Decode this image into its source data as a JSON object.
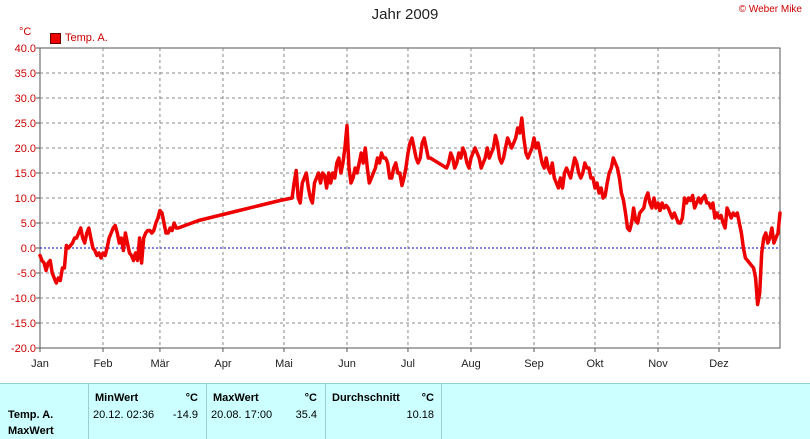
{
  "window": {
    "title": "Jahr 2009",
    "copyright": "© Weber Mike",
    "unit": "°C"
  },
  "chart_data": {
    "type": "line",
    "title": "Jahr 2009",
    "ylabel": "°C",
    "ylim": [
      -20,
      40
    ],
    "yticks": [
      "40.0",
      "35.0",
      "30.0",
      "25.0",
      "20.0",
      "15.0",
      "10.0",
      "5.0",
      "0.0",
      "-5.0",
      "-10.0",
      "-15.0",
      "-20.0"
    ],
    "xticks": [
      "Jan",
      "Feb",
      "Mär",
      "Apr",
      "Mai",
      "Jun",
      "Jul",
      "Aug",
      "Sep",
      "Okt",
      "Nov",
      "Dez"
    ],
    "grid": true,
    "legend": "top-left",
    "zero_line": true,
    "series": [
      {
        "name": "Temp. A.",
        "color": "#ee0000",
        "points": [
          [
            1,
            -1.5
          ],
          [
            2,
            -2.5
          ],
          [
            3,
            -3
          ],
          [
            4,
            -4.5
          ],
          [
            5,
            -3
          ],
          [
            6,
            -2.5
          ],
          [
            7,
            -5
          ],
          [
            8,
            -6
          ],
          [
            9,
            -7
          ],
          [
            10,
            -6
          ],
          [
            11,
            -6.5
          ],
          [
            12,
            -4
          ],
          [
            13,
            -4
          ],
          [
            14,
            0.5
          ],
          [
            15,
            0
          ],
          [
            16,
            0.5
          ],
          [
            17,
            1
          ],
          [
            18,
            2
          ],
          [
            19,
            2
          ],
          [
            20,
            3
          ],
          [
            21,
            4
          ],
          [
            22,
            2
          ],
          [
            23,
            1
          ],
          [
            24,
            3
          ],
          [
            25,
            4
          ],
          [
            26,
            2
          ],
          [
            27,
            0
          ],
          [
            28,
            -0.5
          ],
          [
            29,
            -1.5
          ],
          [
            30,
            -1
          ],
          [
            31,
            -2
          ],
          [
            32,
            -1
          ],
          [
            33,
            -1.5
          ],
          [
            34,
            0
          ],
          [
            35,
            2
          ],
          [
            36,
            3
          ],
          [
            37,
            4
          ],
          [
            38,
            4.5
          ],
          [
            39,
            3
          ],
          [
            40,
            1
          ],
          [
            41,
            2
          ],
          [
            42,
            -0.5
          ],
          [
            43,
            3
          ],
          [
            44,
            1
          ],
          [
            45,
            -1
          ],
          [
            46,
            -1.5
          ],
          [
            47,
            -2.5
          ],
          [
            48,
            -1
          ],
          [
            49,
            -2.5
          ],
          [
            50,
            2
          ],
          [
            51,
            -3
          ],
          [
            52,
            2
          ],
          [
            53,
            3
          ],
          [
            54,
            3.5
          ],
          [
            55,
            3.5
          ],
          [
            56,
            3
          ],
          [
            57,
            3.5
          ],
          [
            58,
            5
          ],
          [
            59,
            6
          ],
          [
            60,
            7.5
          ],
          [
            61,
            7
          ],
          [
            62,
            5
          ],
          [
            63,
            3
          ],
          [
            64,
            3
          ],
          [
            65,
            4
          ],
          [
            66,
            3.5
          ],
          [
            67,
            5
          ],
          [
            68,
            4
          ],
          [
            69,
            4
          ],
          [
            79,
            5.5
          ],
          [
            89,
            6.5
          ],
          [
            99,
            7.5
          ],
          [
            109,
            8.5
          ],
          [
            119,
            9.5
          ],
          [
            125,
            10
          ],
          [
            126,
            13
          ],
          [
            127,
            15.5
          ],
          [
            128,
            10
          ],
          [
            129,
            9
          ],
          [
            130,
            13
          ],
          [
            131,
            14
          ],
          [
            132,
            15
          ],
          [
            133,
            12
          ],
          [
            134,
            10
          ],
          [
            135,
            9
          ],
          [
            136,
            13
          ],
          [
            137,
            14
          ],
          [
            138,
            15
          ],
          [
            139,
            13
          ],
          [
            140,
            15
          ],
          [
            141,
            14.5
          ],
          [
            142,
            12
          ],
          [
            143,
            15
          ],
          [
            144,
            13
          ],
          [
            145,
            15
          ],
          [
            146,
            14
          ],
          [
            147,
            17
          ],
          [
            148,
            18
          ],
          [
            149,
            15
          ],
          [
            150,
            17
          ],
          [
            151,
            20
          ],
          [
            152,
            24.5
          ],
          [
            153,
            16
          ],
          [
            154,
            13
          ],
          [
            155,
            14
          ],
          [
            156,
            16
          ],
          [
            157,
            15
          ],
          [
            158,
            17
          ],
          [
            159,
            19
          ],
          [
            160,
            17
          ],
          [
            161,
            20
          ],
          [
            162,
            16
          ],
          [
            163,
            13
          ],
          [
            164,
            14
          ],
          [
            165,
            15
          ],
          [
            166,
            16
          ],
          [
            167,
            18
          ],
          [
            168,
            17
          ],
          [
            169,
            19
          ],
          [
            170,
            18
          ],
          [
            171,
            18
          ],
          [
            172,
            17
          ],
          [
            173,
            14
          ],
          [
            174,
            14
          ],
          [
            175,
            16
          ],
          [
            176,
            17
          ],
          [
            177,
            15
          ],
          [
            178,
            15
          ],
          [
            179,
            12.5
          ],
          [
            180,
            14
          ],
          [
            181,
            16
          ],
          [
            182,
            19
          ],
          [
            183,
            21
          ],
          [
            184,
            22
          ],
          [
            185,
            20
          ],
          [
            186,
            18
          ],
          [
            187,
            17
          ],
          [
            188,
            18
          ],
          [
            189,
            21
          ],
          [
            190,
            22
          ],
          [
            191,
            20
          ],
          [
            192,
            18
          ],
          [
            193,
            18
          ],
          [
            201,
            16
          ],
          [
            202,
            17
          ],
          [
            203,
            19
          ],
          [
            204,
            18
          ],
          [
            205,
            16
          ],
          [
            206,
            17
          ],
          [
            207,
            19
          ],
          [
            208,
            18
          ],
          [
            209,
            20
          ],
          [
            210,
            19
          ],
          [
            211,
            17
          ],
          [
            212,
            16
          ],
          [
            213,
            18
          ],
          [
            214,
            19
          ],
          [
            215,
            20
          ],
          [
            216,
            19
          ],
          [
            217,
            18
          ],
          [
            218,
            16
          ],
          [
            219,
            17
          ],
          [
            220,
            18
          ],
          [
            221,
            20
          ],
          [
            222,
            18
          ],
          [
            223,
            19
          ],
          [
            224,
            20
          ],
          [
            225,
            22.5
          ],
          [
            226,
            21
          ],
          [
            227,
            18
          ],
          [
            228,
            17
          ],
          [
            229,
            18
          ],
          [
            230,
            20
          ],
          [
            231,
            22
          ],
          [
            232,
            21
          ],
          [
            233,
            20
          ],
          [
            234,
            21
          ],
          [
            235,
            22
          ],
          [
            236,
            24
          ],
          [
            237,
            23
          ],
          [
            238,
            26
          ],
          [
            239,
            22
          ],
          [
            240,
            19
          ],
          [
            241,
            18
          ],
          [
            242,
            19
          ],
          [
            243,
            20
          ],
          [
            244,
            22
          ],
          [
            245,
            20
          ],
          [
            246,
            21
          ],
          [
            247,
            19
          ],
          [
            248,
            17
          ],
          [
            249,
            16
          ],
          [
            250,
            18
          ],
          [
            251,
            16
          ],
          [
            252,
            15
          ],
          [
            253,
            17
          ],
          [
            254,
            14
          ],
          [
            255,
            13
          ],
          [
            256,
            12
          ],
          [
            257,
            14
          ],
          [
            258,
            12
          ],
          [
            259,
            15
          ],
          [
            260,
            16
          ],
          [
            261,
            15
          ],
          [
            262,
            14
          ],
          [
            263,
            16
          ],
          [
            264,
            18
          ],
          [
            265,
            17
          ],
          [
            266,
            15
          ],
          [
            267,
            14
          ],
          [
            268,
            15
          ],
          [
            269,
            17
          ],
          [
            270,
            16
          ],
          [
            271,
            16
          ],
          [
            272,
            14
          ],
          [
            273,
            14
          ],
          [
            274,
            12
          ],
          [
            275,
            13
          ],
          [
            276,
            11
          ],
          [
            277,
            12
          ],
          [
            278,
            10
          ],
          [
            279,
            10.5
          ],
          [
            280,
            13
          ],
          [
            281,
            15
          ],
          [
            282,
            16
          ],
          [
            283,
            18
          ],
          [
            284,
            17
          ],
          [
            285,
            16
          ],
          [
            286,
            14
          ],
          [
            287,
            11
          ],
          [
            288,
            9.5
          ],
          [
            289,
            7
          ],
          [
            290,
            4
          ],
          [
            291,
            3.5
          ],
          [
            292,
            5
          ],
          [
            293,
            8
          ],
          [
            294,
            5.5
          ],
          [
            295,
            5
          ],
          [
            296,
            7
          ],
          [
            297,
            7.5
          ],
          [
            298,
            8
          ],
          [
            299,
            10
          ],
          [
            300,
            11
          ],
          [
            301,
            9
          ],
          [
            302,
            8
          ],
          [
            303,
            10
          ],
          [
            304,
            8
          ],
          [
            305,
            9
          ],
          [
            306,
            7.5
          ],
          [
            307,
            9
          ],
          [
            308,
            8
          ],
          [
            309,
            8.5
          ],
          [
            310,
            8
          ],
          [
            311,
            7
          ],
          [
            312,
            6
          ],
          [
            313,
            7
          ],
          [
            314,
            6
          ],
          [
            315,
            5
          ],
          [
            316,
            5
          ],
          [
            317,
            6
          ],
          [
            318,
            10
          ],
          [
            319,
            9
          ],
          [
            320,
            10
          ],
          [
            321,
            9.5
          ],
          [
            322,
            10.5
          ],
          [
            323,
            8
          ],
          [
            324,
            9
          ],
          [
            325,
            10
          ],
          [
            326,
            9
          ],
          [
            327,
            10
          ],
          [
            328,
            10.5
          ],
          [
            329,
            9
          ],
          [
            330,
            9
          ],
          [
            331,
            8
          ],
          [
            332,
            9
          ],
          [
            333,
            6
          ],
          [
            334,
            7
          ],
          [
            335,
            6
          ],
          [
            336,
            6.5
          ],
          [
            337,
            5
          ],
          [
            338,
            4
          ],
          [
            339,
            8
          ],
          [
            340,
            7
          ],
          [
            341,
            6
          ],
          [
            342,
            7
          ],
          [
            343,
            6.5
          ],
          [
            344,
            7
          ],
          [
            345,
            5
          ],
          [
            346,
            3
          ],
          [
            347,
            0
          ],
          [
            348,
            -2
          ],
          [
            349,
            -2.5
          ],
          [
            350,
            -3
          ],
          [
            351,
            -3.5
          ],
          [
            352,
            -4
          ],
          [
            353,
            -6
          ],
          [
            354,
            -11.3
          ],
          [
            355,
            -9
          ],
          [
            356,
            -1
          ],
          [
            357,
            2
          ],
          [
            358,
            3
          ],
          [
            359,
            1
          ],
          [
            360,
            2
          ],
          [
            361,
            4
          ],
          [
            362,
            1
          ],
          [
            363,
            2
          ],
          [
            364,
            3
          ],
          [
            365,
            7
          ]
        ]
      }
    ]
  },
  "stats": {
    "row_labels": [
      "Temp. A.",
      "MaxWert"
    ],
    "columns": [
      {
        "header": "MinWert",
        "unit": "°C",
        "datetime": "20.12.  02:36",
        "value": "-14.9"
      },
      {
        "header": "MaxWert",
        "unit": "°C",
        "datetime": "20.08.  17:00",
        "value": "35.4"
      },
      {
        "header": "Durchschnitt",
        "unit": "°C",
        "datetime": "",
        "value": "10.18"
      }
    ]
  }
}
